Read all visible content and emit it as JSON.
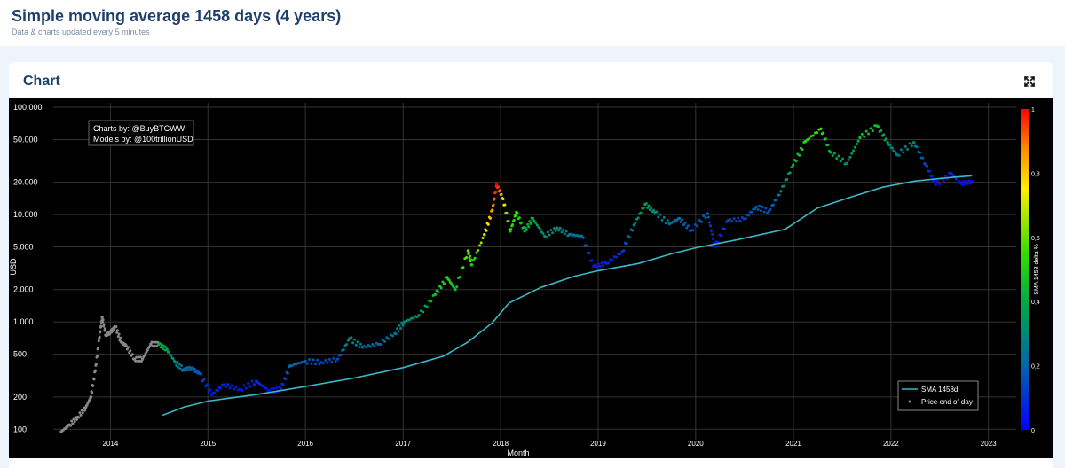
{
  "page": {
    "title": "Simple moving average 1458 days (4 years)",
    "subtitle": "Data & charts updated every 5 minutes"
  },
  "card": {
    "title": "Chart",
    "expand_icon": "expand-arrows-icon"
  },
  "annotation": {
    "line1": "Charts by: @BuyBTCWW",
    "line2": "Models by: @100trillionUSD"
  },
  "colors": {
    "sma_line": "#3bb8c8",
    "price_gray": "#888888",
    "background": "#000000",
    "grid": "#333333"
  },
  "chart_data": {
    "type": "scatter",
    "xlabel": "Month",
    "ylabel": "USD",
    "y_scale": "log",
    "ylim": [
      80,
      110000
    ],
    "xlim": [
      "2013-06-01",
      "2023-04-15"
    ],
    "grid": true,
    "legend_position": "bottom-right",
    "x_ticks": [
      "2014",
      "2015",
      "2016",
      "2017",
      "2018",
      "2019",
      "2020",
      "2021",
      "2022",
      "2023"
    ],
    "y_ticks": [
      {
        "value": 100000,
        "label": "100.000"
      },
      {
        "value": 50000,
        "label": "50.000"
      },
      {
        "value": 20000,
        "label": "20.000"
      },
      {
        "value": 10000,
        "label": "10.000"
      },
      {
        "value": 5000,
        "label": "5.000"
      },
      {
        "value": 2000,
        "label": "2.000"
      },
      {
        "value": 1000,
        "label": "1.000"
      },
      {
        "value": 500,
        "label": "500"
      },
      {
        "value": 200,
        "label": "200"
      },
      {
        "value": 100,
        "label": "100"
      }
    ],
    "colorbar": {
      "label": "SMA 1458 delta %",
      "range": [
        0,
        1
      ],
      "ticks": [
        {
          "value": 1,
          "label": "1"
        },
        {
          "value": 0.8,
          "label": "0,8"
        },
        {
          "value": 0.6,
          "label": "0,6"
        },
        {
          "value": 0.4,
          "label": "0,4"
        },
        {
          "value": 0.2,
          "label": "0,2"
        },
        {
          "value": 0,
          "label": "0"
        }
      ],
      "stops": [
        "#0000ff",
        "#0066aa",
        "#00aa44",
        "#33dd00",
        "#ffee00",
        "#ff8800",
        "#ff0000"
      ]
    },
    "series": [
      {
        "name": "SMA 1458d",
        "kind": "line",
        "points": [
          [
            "2014-07-15",
            135
          ],
          [
            "2014-10-01",
            160
          ],
          [
            "2015-01-01",
            183
          ],
          [
            "2015-07-01",
            210
          ],
          [
            "2016-01-01",
            250
          ],
          [
            "2016-07-01",
            300
          ],
          [
            "2017-01-01",
            375
          ],
          [
            "2017-06-01",
            480
          ],
          [
            "2017-09-01",
            650
          ],
          [
            "2017-12-01",
            980
          ],
          [
            "2018-02-01",
            1500
          ],
          [
            "2018-06-01",
            2100
          ],
          [
            "2018-10-01",
            2650
          ],
          [
            "2019-01-01",
            3000
          ],
          [
            "2019-06-01",
            3500
          ],
          [
            "2019-10-01",
            4300
          ],
          [
            "2020-01-01",
            4900
          ],
          [
            "2020-06-01",
            5800
          ],
          [
            "2020-12-01",
            7300
          ],
          [
            "2021-04-01",
            11500
          ],
          [
            "2021-08-01",
            14500
          ],
          [
            "2021-12-01",
            18000
          ],
          [
            "2022-04-01",
            20500
          ],
          [
            "2022-08-01",
            22000
          ],
          [
            "2022-11-01",
            23000
          ]
        ]
      },
      {
        "name": "Price end of day",
        "kind": "scatter",
        "points": [
          [
            "2013-07-01",
            95,
            null
          ],
          [
            "2013-08-01",
            110,
            null
          ],
          [
            "2013-09-01",
            130,
            null
          ],
          [
            "2013-10-01",
            160,
            null
          ],
          [
            "2013-10-20",
            200,
            null
          ],
          [
            "2013-11-05",
            350,
            null
          ],
          [
            "2013-11-20",
            700,
            null
          ],
          [
            "2013-12-01",
            1100,
            null
          ],
          [
            "2013-12-15",
            750,
            null
          ],
          [
            "2014-01-01",
            800,
            null
          ],
          [
            "2014-01-20",
            900,
            null
          ],
          [
            "2014-02-10",
            650,
            null
          ],
          [
            "2014-03-01",
            600,
            null
          ],
          [
            "2014-04-01",
            450,
            null
          ],
          [
            "2014-05-01",
            450,
            null
          ],
          [
            "2014-06-01",
            620,
            null
          ],
          [
            "2014-07-01",
            620,
            0.42
          ],
          [
            "2014-08-01",
            550,
            0.38
          ],
          [
            "2014-09-01",
            420,
            0.3
          ],
          [
            "2014-10-01",
            360,
            0.22
          ],
          [
            "2014-11-01",
            370,
            0.2
          ],
          [
            "2014-12-01",
            330,
            0.16
          ],
          [
            "2015-01-15",
            210,
            0.04
          ],
          [
            "2015-03-01",
            260,
            0.08
          ],
          [
            "2015-05-01",
            235,
            0.05
          ],
          [
            "2015-07-01",
            280,
            0.1
          ],
          [
            "2015-08-20",
            225,
            0.03
          ],
          [
            "2015-10-01",
            240,
            0.05
          ],
          [
            "2015-11-05",
            390,
            0.22
          ],
          [
            "2016-01-01",
            430,
            0.18
          ],
          [
            "2016-03-01",
            420,
            0.14
          ],
          [
            "2016-05-01",
            450,
            0.14
          ],
          [
            "2016-06-15",
            700,
            0.32
          ],
          [
            "2016-08-01",
            580,
            0.22
          ],
          [
            "2016-10-01",
            620,
            0.2
          ],
          [
            "2016-12-01",
            780,
            0.24
          ],
          [
            "2017-01-05",
            1000,
            0.3
          ],
          [
            "2017-03-01",
            1150,
            0.32
          ],
          [
            "2017-05-01",
            1800,
            0.46
          ],
          [
            "2017-06-15",
            2600,
            0.52
          ],
          [
            "2017-07-15",
            2000,
            0.44
          ],
          [
            "2017-09-01",
            4600,
            0.6
          ],
          [
            "2017-09-15",
            3400,
            0.5
          ],
          [
            "2017-11-01",
            6500,
            0.7
          ],
          [
            "2017-12-01",
            11000,
            0.85
          ],
          [
            "2017-12-17",
            19000,
            1.0
          ],
          [
            "2018-01-10",
            14000,
            0.78
          ],
          [
            "2018-02-06",
            7000,
            0.52
          ],
          [
            "2018-03-01",
            10500,
            0.56
          ],
          [
            "2018-04-01",
            7000,
            0.4
          ],
          [
            "2018-05-01",
            9200,
            0.42
          ],
          [
            "2018-06-15",
            6300,
            0.3
          ],
          [
            "2018-08-01",
            7500,
            0.3
          ],
          [
            "2018-09-15",
            6500,
            0.25
          ],
          [
            "2018-11-01",
            6300,
            0.22
          ],
          [
            "2018-12-15",
            3300,
            0.06
          ],
          [
            "2019-02-01",
            3500,
            0.06
          ],
          [
            "2019-04-01",
            4500,
            0.1
          ],
          [
            "2019-05-15",
            8000,
            0.28
          ],
          [
            "2019-06-26",
            12500,
            0.38
          ],
          [
            "2019-08-01",
            10500,
            0.3
          ],
          [
            "2019-09-25",
            8200,
            0.22
          ],
          [
            "2019-11-01",
            9200,
            0.22
          ],
          [
            "2019-12-15",
            7100,
            0.14
          ],
          [
            "2020-02-15",
            10200,
            0.2
          ],
          [
            "2020-03-13",
            5000,
            0.03
          ],
          [
            "2020-05-01",
            8800,
            0.14
          ],
          [
            "2020-07-01",
            9100,
            0.12
          ],
          [
            "2020-08-15",
            11800,
            0.18
          ],
          [
            "2020-10-01",
            10700,
            0.14
          ],
          [
            "2020-11-15",
            16500,
            0.28
          ],
          [
            "2020-12-31",
            29000,
            0.4
          ],
          [
            "2021-02-15",
            48000,
            0.52
          ],
          [
            "2021-04-14",
            63000,
            0.56
          ],
          [
            "2021-05-20",
            38000,
            0.4
          ],
          [
            "2021-07-20",
            30000,
            0.3
          ],
          [
            "2021-09-07",
            52000,
            0.44
          ],
          [
            "2021-11-10",
            67000,
            0.46
          ],
          [
            "2021-12-20",
            47000,
            0.34
          ],
          [
            "2022-01-24",
            36000,
            0.24
          ],
          [
            "2022-03-28",
            47000,
            0.3
          ],
          [
            "2022-05-12",
            29000,
            0.12
          ],
          [
            "2022-06-18",
            19000,
            0.03
          ],
          [
            "2022-08-15",
            24000,
            0.08
          ],
          [
            "2022-09-20",
            19500,
            0.03
          ],
          [
            "2022-11-01",
            20300,
            0.04
          ]
        ]
      }
    ]
  }
}
